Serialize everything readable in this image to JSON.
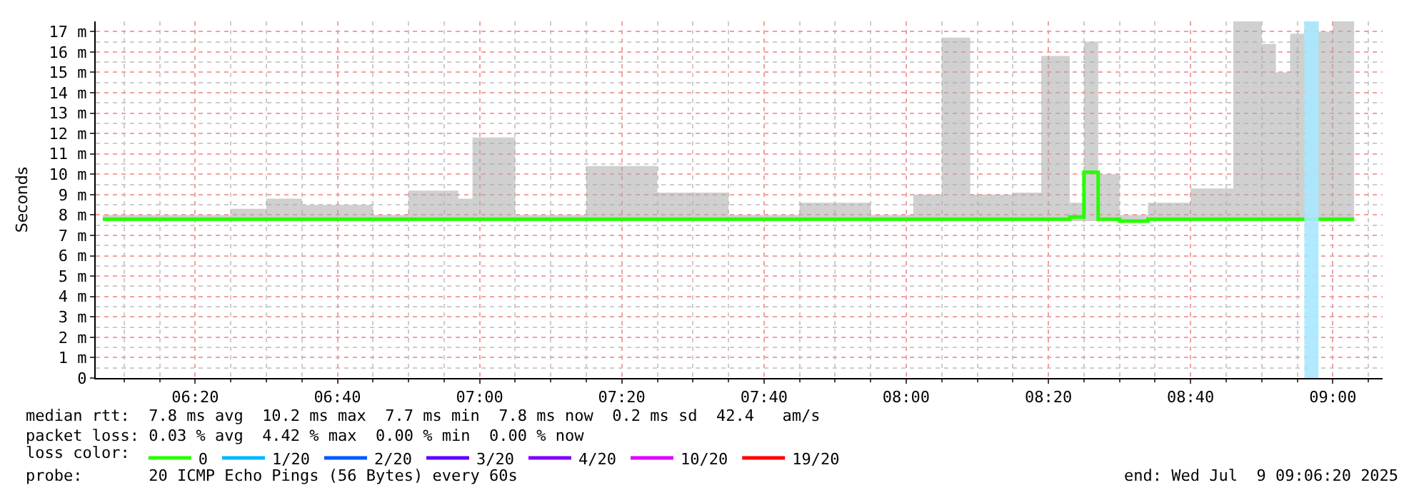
{
  "chart_data": {
    "type": "step",
    "ylabel": "Seconds",
    "legend_title": "loss color:",
    "legend": "bottom",
    "grid": true,
    "marker": "none",
    "line_style": "solid",
    "x": [
      "2025-07-09T06:07",
      "2025-07-09T06:15",
      "2025-07-09T06:25",
      "2025-07-09T06:30",
      "2025-07-09T06:35",
      "2025-07-09T06:45",
      "2025-07-09T06:50",
      "2025-07-09T06:57",
      "2025-07-09T06:59",
      "2025-07-09T07:05",
      "2025-07-09T07:15",
      "2025-07-09T07:25",
      "2025-07-09T07:35",
      "2025-07-09T07:45",
      "2025-07-09T07:55",
      "2025-07-09T08:01",
      "2025-07-09T08:05",
      "2025-07-09T08:09",
      "2025-07-09T08:15",
      "2025-07-09T08:19",
      "2025-07-09T08:23",
      "2025-07-09T08:25",
      "2025-07-09T08:27",
      "2025-07-09T08:30",
      "2025-07-09T08:34",
      "2025-07-09T08:40",
      "2025-07-09T08:46",
      "2025-07-09T08:48",
      "2025-07-09T08:50",
      "2025-07-09T08:52",
      "2025-07-09T08:54",
      "2025-07-09T08:56",
      "2025-07-09T08:58",
      "2025-07-09T09:00",
      "2025-07-09T09:03"
    ],
    "series": [
      {
        "name": "0",
        "color": "#26ff00",
        "values": [
          7.8,
          7.8,
          7.8,
          7.8,
          7.8,
          7.8,
          7.8,
          7.8,
          7.8,
          7.8,
          7.8,
          7.8,
          7.8,
          7.8,
          7.8,
          7.8,
          7.8,
          7.8,
          7.8,
          7.8,
          7.9,
          10.1,
          7.8,
          7.7,
          7.8,
          7.8,
          7.8,
          7.8,
          7.8,
          7.8,
          7.8,
          7.8,
          7.8,
          7.8,
          7.8
        ],
        "lower": [
          7.7,
          7.7,
          7.7,
          7.7,
          7.7,
          7.7,
          7.7,
          7.7,
          7.7,
          7.7,
          7.7,
          7.7,
          7.7,
          7.7,
          7.7,
          7.7,
          7.7,
          7.7,
          7.7,
          7.7,
          7.7,
          7.7,
          7.7,
          7.7,
          7.7,
          7.7,
          7.7,
          7.7,
          7.7,
          7.7,
          7.7,
          7.7,
          7.7,
          7.7,
          7.7
        ],
        "upper": [
          8.0,
          8.0,
          8.3,
          8.8,
          8.5,
          8.0,
          9.2,
          8.8,
          11.8,
          8.0,
          10.4,
          9.1,
          8.0,
          8.6,
          8.0,
          9.0,
          16.7,
          9.0,
          9.1,
          15.8,
          8.6,
          16.5,
          10.0,
          8.0,
          8.6,
          9.3,
          17.5,
          17.5,
          16.4,
          15.0,
          16.9,
          17.5,
          17.0,
          17.5,
          8.7
        ]
      },
      {
        "name": "1/20",
        "color": "#00b8ff",
        "values": [
          null,
          null,
          null,
          null,
          null,
          null,
          null,
          null,
          null,
          null,
          null,
          null,
          null,
          null,
          null,
          null,
          null,
          null,
          null,
          null,
          null,
          null,
          null,
          null,
          null,
          null,
          null,
          null,
          null,
          null,
          null,
          null,
          null,
          null,
          null
        ]
      },
      {
        "name": "2/20",
        "color": "#0059ff",
        "values": [
          null,
          null,
          null,
          null,
          null,
          null,
          null,
          null,
          null,
          null,
          null,
          null,
          null,
          null,
          null,
          null,
          null,
          null,
          null,
          null,
          null,
          null,
          null,
          null,
          null,
          null,
          null,
          null,
          null,
          null,
          null,
          null,
          null,
          null,
          null
        ]
      },
      {
        "name": "3/20",
        "color": "#5e00ff",
        "values": [
          null,
          null,
          null,
          null,
          null,
          null,
          null,
          null,
          null,
          null,
          null,
          null,
          null,
          null,
          null,
          null,
          null,
          null,
          null,
          null,
          null,
          null,
          null,
          null,
          null,
          null,
          null,
          null,
          null,
          null,
          null,
          null,
          null,
          null,
          null
        ]
      },
      {
        "name": "4/20",
        "color": "#7e00ff",
        "values": [
          null,
          null,
          null,
          null,
          null,
          null,
          null,
          null,
          null,
          null,
          null,
          null,
          null,
          null,
          null,
          null,
          null,
          null,
          null,
          null,
          null,
          null,
          null,
          null,
          null,
          null,
          null,
          null,
          null,
          null,
          null,
          null,
          null,
          null,
          null
        ]
      },
      {
        "name": "10/20",
        "color": "#dd00ff",
        "values": [
          null,
          null,
          null,
          null,
          null,
          null,
          null,
          null,
          null,
          null,
          null,
          null,
          null,
          null,
          null,
          null,
          null,
          null,
          null,
          null,
          null,
          null,
          null,
          null,
          null,
          null,
          null,
          null,
          null,
          null,
          null,
          null,
          null,
          null,
          null
        ]
      },
      {
        "name": "19/20",
        "color": "#ff0000",
        "values": [
          null,
          null,
          null,
          null,
          null,
          null,
          null,
          null,
          null,
          null,
          null,
          null,
          null,
          null,
          null,
          null,
          null,
          null,
          null,
          null,
          null,
          null,
          null,
          null,
          null,
          null,
          null,
          null,
          null,
          null,
          null,
          null,
          null,
          null,
          null
        ]
      }
    ],
    "bands": [
      {
        "axis": "x",
        "from": "2025-07-09T08:56",
        "to": "2025-07-09T08:58",
        "color": "#a8e8ff"
      }
    ],
    "xlim": [
      "2025-07-09T06:06",
      "2025-07-09T09:07"
    ],
    "xticks": [
      {
        "value": "2025-07-09T06:20",
        "label": "06:20"
      },
      {
        "value": "2025-07-09T06:40",
        "label": "06:40"
      },
      {
        "value": "2025-07-09T07:00",
        "label": "07:00"
      },
      {
        "value": "2025-07-09T07:20",
        "label": "07:20"
      },
      {
        "value": "2025-07-09T07:40",
        "label": "07:40"
      },
      {
        "value": "2025-07-09T08:00",
        "label": "08:00"
      },
      {
        "value": "2025-07-09T08:20",
        "label": "08:20"
      },
      {
        "value": "2025-07-09T08:40",
        "label": "08:40"
      },
      {
        "value": "2025-07-09T09:00",
        "label": "09:00"
      }
    ],
    "ylim": [
      0,
      17.5
    ],
    "yticks": [
      0,
      {
        "value": 1,
        "label": "1 m"
      },
      {
        "value": 2,
        "label": "2 m"
      },
      {
        "value": 3,
        "label": "3 m"
      },
      {
        "value": 4,
        "label": "4 m"
      },
      {
        "value": 5,
        "label": "5 m"
      },
      {
        "value": 6,
        "label": "6 m"
      },
      {
        "value": 7,
        "label": "7 m"
      },
      {
        "value": 8,
        "label": "8 m"
      },
      {
        "value": 9,
        "label": "9 m"
      },
      {
        "value": 10,
        "label": "10 m"
      },
      {
        "value": 11,
        "label": "11 m"
      },
      {
        "value": 12,
        "label": "12 m"
      },
      {
        "value": 13,
        "label": "13 m"
      },
      {
        "value": 14,
        "label": "14 m"
      },
      {
        "value": 15,
        "label": "15 m"
      },
      {
        "value": 16,
        "label": "16 m"
      },
      {
        "value": 17,
        "label": "17 m"
      }
    ],
    "annotations": [
      "median rtt:  7.8 ms avg  10.2 ms max  7.7 ms min  7.8 ms now  0.2 ms sd  42.4   am/s",
      "packet loss: 0.03 % avg  4.42 % max  0.00 % min  0.00 % now",
      "probe:       20 ICMP Echo Pings (56 Bytes) every 60s",
      "end: Wed Jul  9 09:06:20 2025"
    ]
  }
}
